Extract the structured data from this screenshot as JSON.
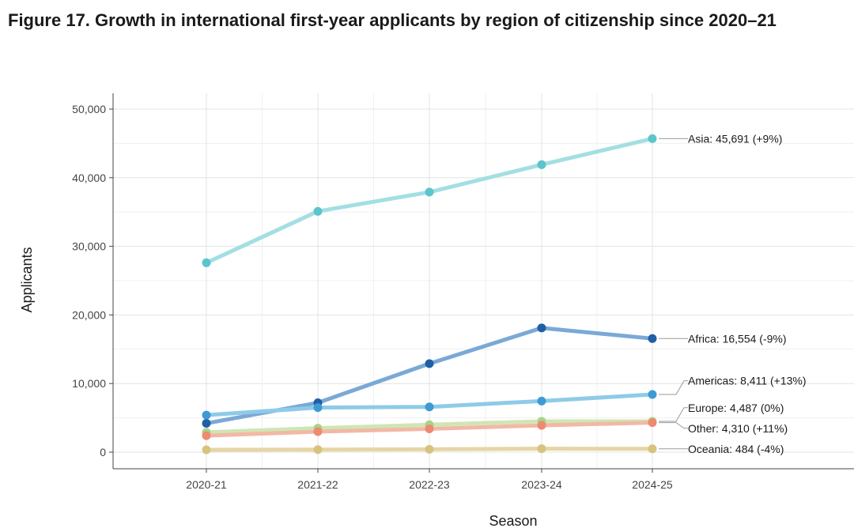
{
  "figure": {
    "title": "Figure 17. Growth in international first-year applicants by region of citizenship since 2020–21"
  },
  "chart_data": {
    "type": "line",
    "title": "Figure 17. Growth in international first-year applicants by region of citizenship since 2020–21",
    "xlabel": "Season",
    "ylabel": "Applicants",
    "categories": [
      "2020-21",
      "2021-22",
      "2022-23",
      "2023-24",
      "2024-25"
    ],
    "ylim": [
      0,
      50000
    ],
    "yticks": [
      0,
      10000,
      20000,
      30000,
      40000,
      50000
    ],
    "ytick_labels": [
      "0",
      "10,000",
      "20,000",
      "30,000",
      "40,000",
      "50,000"
    ],
    "grid": true,
    "legend": "direct labels at line ends",
    "series": [
      {
        "name": "Asia",
        "values": [
          27600,
          35100,
          37900,
          41900,
          45691
        ],
        "end_label": "Asia: 45,691 (+9%)",
        "line_color": "#a3dfe2",
        "point_color": "#5cc4cc"
      },
      {
        "name": "Africa",
        "values": [
          4200,
          7200,
          12900,
          18100,
          16554
        ],
        "end_label": "Africa: 16,554 (-9%)",
        "line_color": "#7aa9d6",
        "point_color": "#1f5fa6"
      },
      {
        "name": "Americas",
        "values": [
          5400,
          6500,
          6600,
          7450,
          8411
        ],
        "end_label": "Americas: 8,411 (+13%)",
        "line_color": "#8dcbe8",
        "point_color": "#3d9ad4"
      },
      {
        "name": "Europe",
        "values": [
          2900,
          3500,
          4000,
          4500,
          4487
        ],
        "end_label": "Europe: 4,487 (0%)",
        "line_color": "#cfe6b4",
        "point_color": "#a8d48a"
      },
      {
        "name": "Other",
        "values": [
          2400,
          3000,
          3400,
          3900,
          4310
        ],
        "end_label": "Other: 4,310 (+11%)",
        "line_color": "#f2b8a6",
        "point_color": "#ee8a70"
      },
      {
        "name": "Oceania",
        "values": [
          350,
          380,
          420,
          500,
          484
        ],
        "end_label": "Oceania: 484 (-4%)",
        "line_color": "#e6d6a4",
        "point_color": "#d8c37e"
      }
    ]
  }
}
